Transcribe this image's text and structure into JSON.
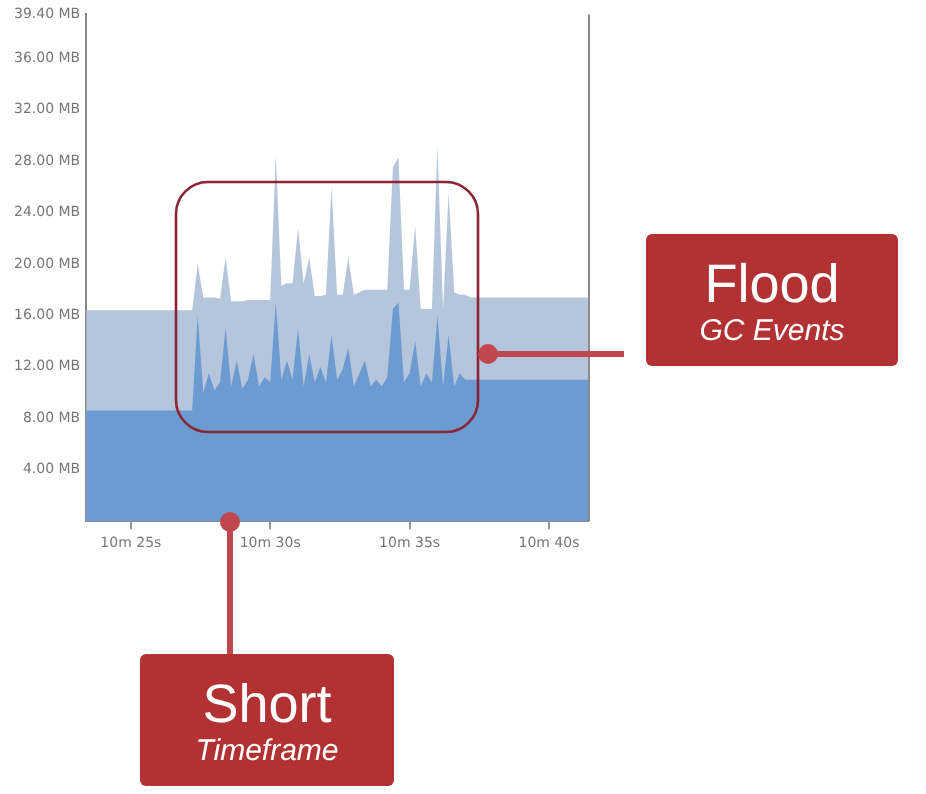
{
  "chart_data": {
    "type": "area",
    "annotations": [
      "Flood",
      "GC Events",
      "Short",
      "Timeframe"
    ],
    "categories": [
      null,
      null,
      null,
      null,
      null,
      null,
      null,
      null,
      "10m 25s",
      null,
      null,
      null,
      null,
      null,
      null,
      null,
      null,
      null,
      null,
      null,
      null,
      null,
      null,
      null,
      null,
      null,
      null,
      null,
      null,
      null,
      null,
      null,
      null,
      "10m 30s",
      null,
      null,
      null,
      null,
      null,
      null,
      null,
      null,
      null,
      null,
      null,
      null,
      null,
      null,
      null,
      null,
      null,
      null,
      null,
      null,
      null,
      null,
      null,
      null,
      "10m 35s",
      null,
      null,
      null,
      null,
      null,
      null,
      null,
      null,
      null,
      null,
      null,
      null,
      null,
      null,
      null,
      null,
      null,
      null,
      null,
      null,
      null,
      null,
      null,
      null,
      "10m 40s",
      null,
      null,
      null,
      null,
      null,
      null,
      null
    ],
    "ylim": [
      0,
      39.4
    ],
    "yticks": [
      {
        "value": 4,
        "label": "4.00 MB"
      },
      {
        "value": 8,
        "label": "8.00 MB"
      },
      {
        "value": 12,
        "label": "12.00 MB"
      },
      {
        "value": 16,
        "label": "16.00 MB"
      },
      {
        "value": 20,
        "label": "20.00 MB"
      },
      {
        "value": 24,
        "label": "24.00 MB"
      },
      {
        "value": 28,
        "label": "28.00 MB"
      },
      {
        "value": 32,
        "label": "32.00 MB"
      },
      {
        "value": 36,
        "label": "36.00 MB"
      },
      {
        "value": 39.4,
        "label": "39.40 MB"
      }
    ],
    "grid": false,
    "legend": false,
    "series": [
      {
        "color": "#b5c6dc",
        "values": [
          16.4,
          16.4,
          16.4,
          16.4,
          16.4,
          16.4,
          16.4,
          16.4,
          16.4,
          16.4,
          16.4,
          16.4,
          16.4,
          16.4,
          16.4,
          16.4,
          16.4,
          16.4,
          16.4,
          16.4,
          20.0,
          17.4,
          17.4,
          17.4,
          17.3,
          20.5,
          17.1,
          17.1,
          17.1,
          17.2,
          17.2,
          17.2,
          17.2,
          17.2,
          28.5,
          18.3,
          18.5,
          18.5,
          22.8,
          18.5,
          20.5,
          17.5,
          17.5,
          17.6,
          26.0,
          17.6,
          17.6,
          20.5,
          17.6,
          17.8,
          18.0,
          18.0,
          18.0,
          18.0,
          18.0,
          27.5,
          28.3,
          18.0,
          18.0,
          23.0,
          16.5,
          16.5,
          16.5,
          29.2,
          16.5,
          25.6,
          17.8,
          17.6,
          17.6,
          17.4,
          17.4,
          17.4,
          17.4,
          17.4,
          17.4,
          17.4,
          17.4,
          17.4,
          17.4,
          17.4,
          17.4,
          17.4,
          17.4,
          17.4,
          17.4,
          17.4,
          17.4,
          17.4,
          17.4,
          17.4,
          17.4
        ]
      },
      {
        "color": "#6b9bd1",
        "values": [
          8.6,
          8.6,
          8.6,
          8.6,
          8.6,
          8.6,
          8.6,
          8.6,
          8.6,
          8.6,
          8.6,
          8.6,
          8.6,
          8.6,
          8.6,
          8.6,
          8.6,
          8.6,
          8.6,
          8.6,
          16.0,
          10.0,
          11.5,
          10.2,
          10.8,
          15.0,
          10.5,
          12.5,
          10.3,
          11.0,
          13.0,
          10.5,
          11.2,
          10.8,
          17.0,
          11.0,
          12.5,
          11.0,
          15.0,
          10.5,
          13.0,
          10.8,
          12.0,
          10.8,
          14.5,
          11.0,
          11.8,
          13.5,
          10.5,
          11.5,
          12.5,
          10.5,
          11.0,
          10.5,
          11.2,
          16.5,
          17.0,
          10.8,
          11.5,
          14.0,
          10.5,
          11.5,
          10.8,
          16.0,
          10.5,
          14.5,
          10.5,
          11.5,
          11.0,
          11.0,
          11.0,
          11.0,
          11.0,
          11.0,
          11.0,
          11.0,
          11.0,
          11.0,
          11.0,
          11.0,
          11.0,
          11.0,
          11.0,
          11.0,
          11.0,
          11.0,
          11.0,
          11.0,
          11.0,
          11.0,
          11.0
        ]
      }
    ]
  }
}
